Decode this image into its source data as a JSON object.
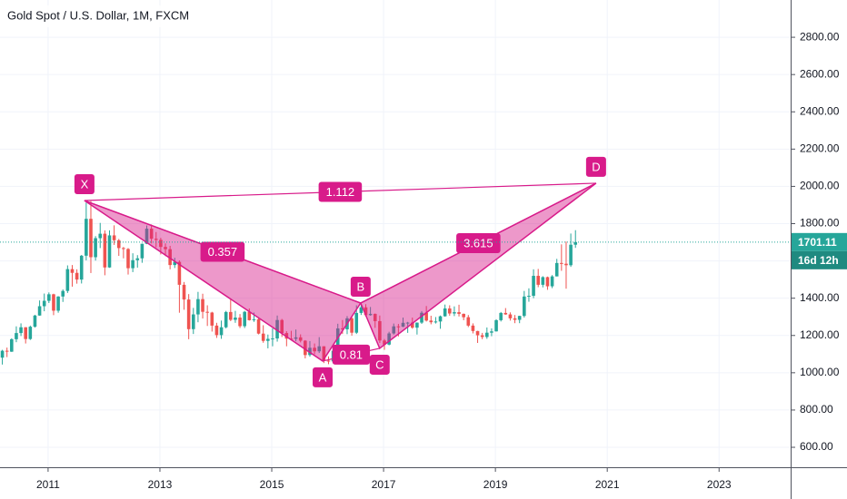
{
  "chart_data": {
    "type": "candlestick",
    "title": "Gold Spot / U.S. Dollar, 1M, FXCM",
    "up_color": "#26a69a",
    "down_color": "#ef5350",
    "grid": true,
    "xlim": [
      2010.14,
      2024.28
    ],
    "xticks": [
      2011,
      2013,
      2015,
      2017,
      2019,
      2021,
      2023
    ],
    "ylim": [
      493,
      3000
    ],
    "yticks": [
      {
        "value": 600,
        "label": "600.00"
      },
      {
        "value": 800,
        "label": "800.00"
      },
      {
        "value": 1000,
        "label": "1000.00"
      },
      {
        "value": 1200,
        "label": "1200.00"
      },
      {
        "value": 1400,
        "label": "1400.00"
      },
      {
        "value": 1600,
        "label": "1600.00"
      },
      {
        "value": 1800,
        "label": "1800.00"
      },
      {
        "value": 2000,
        "label": "2000.00"
      },
      {
        "value": 2200,
        "label": "2200.00"
      },
      {
        "value": 2400,
        "label": "2400.00"
      },
      {
        "value": 2600,
        "label": "2600.00"
      },
      {
        "value": 2800,
        "label": "2800.00"
      }
    ],
    "ohlc": [
      [
        1081,
        1123,
        1044,
        1118
      ],
      [
        1118,
        1135,
        1084,
        1113
      ],
      [
        1113,
        1185,
        1112,
        1180
      ],
      [
        1180,
        1249,
        1164,
        1213
      ],
      [
        1213,
        1265,
        1197,
        1244
      ],
      [
        1244,
        1245,
        1157,
        1181
      ],
      [
        1181,
        1253,
        1176,
        1247
      ],
      [
        1247,
        1311,
        1242,
        1307
      ],
      [
        1307,
        1388,
        1306,
        1357
      ],
      [
        1357,
        1425,
        1330,
        1386
      ],
      [
        1386,
        1431,
        1374,
        1421
      ],
      [
        1421,
        1424,
        1309,
        1333
      ],
      [
        1333,
        1411,
        1322,
        1409
      ],
      [
        1409,
        1447,
        1380,
        1439
      ],
      [
        1439,
        1576,
        1428,
        1556
      ],
      [
        1556,
        1578,
        1462,
        1536
      ],
      [
        1536,
        1555,
        1478,
        1500
      ],
      [
        1500,
        1632,
        1479,
        1628
      ],
      [
        1628,
        1913,
        1603,
        1826
      ],
      [
        1826,
        1921,
        1535,
        1620
      ],
      [
        1620,
        1733,
        1602,
        1722
      ],
      [
        1722,
        1804,
        1669,
        1746
      ],
      [
        1746,
        1764,
        1523,
        1565
      ],
      [
        1565,
        1764,
        1563,
        1737
      ],
      [
        1737,
        1791,
        1686,
        1711
      ],
      [
        1711,
        1718,
        1627,
        1669
      ],
      [
        1669,
        1675,
        1614,
        1664
      ],
      [
        1664,
        1669,
        1527,
        1561
      ],
      [
        1561,
        1641,
        1540,
        1604
      ],
      [
        1604,
        1631,
        1564,
        1614
      ],
      [
        1614,
        1693,
        1590,
        1692
      ],
      [
        1692,
        1790,
        1690,
        1773
      ],
      [
        1773,
        1796,
        1694,
        1719
      ],
      [
        1719,
        1755,
        1673,
        1713
      ],
      [
        1713,
        1724,
        1635,
        1675
      ],
      [
        1675,
        1694,
        1626,
        1663
      ],
      [
        1663,
        1681,
        1555,
        1578
      ],
      [
        1578,
        1617,
        1562,
        1595
      ],
      [
        1595,
        1603,
        1322,
        1472
      ],
      [
        1472,
        1487,
        1338,
        1393
      ],
      [
        1393,
        1422,
        1180,
        1234
      ],
      [
        1234,
        1348,
        1208,
        1313
      ],
      [
        1313,
        1434,
        1271,
        1395
      ],
      [
        1395,
        1424,
        1291,
        1327
      ],
      [
        1327,
        1362,
        1251,
        1323
      ],
      [
        1323,
        1327,
        1221,
        1253
      ],
      [
        1253,
        1268,
        1187,
        1202
      ],
      [
        1202,
        1280,
        1182,
        1244
      ],
      [
        1244,
        1332,
        1238,
        1326
      ],
      [
        1326,
        1392,
        1277,
        1284
      ],
      [
        1284,
        1332,
        1268,
        1296
      ],
      [
        1296,
        1315,
        1240,
        1250
      ],
      [
        1250,
        1332,
        1240,
        1327
      ],
      [
        1327,
        1345,
        1280,
        1282
      ],
      [
        1282,
        1323,
        1273,
        1287
      ],
      [
        1287,
        1293,
        1206,
        1210
      ],
      [
        1210,
        1255,
        1161,
        1171
      ],
      [
        1171,
        1205,
        1131,
        1182
      ],
      [
        1182,
        1238,
        1142,
        1184
      ],
      [
        1184,
        1307,
        1167,
        1283
      ],
      [
        1283,
        1289,
        1192,
        1213
      ],
      [
        1213,
        1223,
        1142,
        1183
      ],
      [
        1183,
        1225,
        1175,
        1182
      ],
      [
        1182,
        1232,
        1169,
        1190
      ],
      [
        1190,
        1206,
        1163,
        1172
      ],
      [
        1172,
        1175,
        1077,
        1095
      ],
      [
        1095,
        1170,
        1086,
        1134
      ],
      [
        1134,
        1157,
        1099,
        1115
      ],
      [
        1115,
        1191,
        1106,
        1142
      ],
      [
        1142,
        1142,
        1052,
        1065
      ],
      [
        1065,
        1088,
        1046,
        1061
      ],
      [
        1061,
        1127,
        1056,
        1118
      ],
      [
        1118,
        1263,
        1107,
        1238
      ],
      [
        1238,
        1283,
        1208,
        1233
      ],
      [
        1233,
        1304,
        1207,
        1292
      ],
      [
        1292,
        1304,
        1199,
        1215
      ],
      [
        1215,
        1362,
        1208,
        1321
      ],
      [
        1321,
        1375,
        1310,
        1351
      ],
      [
        1351,
        1368,
        1301,
        1309
      ],
      [
        1309,
        1353,
        1306,
        1316
      ],
      [
        1316,
        1318,
        1241,
        1277
      ],
      [
        1277,
        1307,
        1160,
        1173
      ],
      [
        1173,
        1181,
        1123,
        1151
      ],
      [
        1151,
        1220,
        1147,
        1211
      ],
      [
        1211,
        1264,
        1205,
        1249
      ],
      [
        1249,
        1262,
        1195,
        1247
      ],
      [
        1247,
        1296,
        1245,
        1268
      ],
      [
        1268,
        1273,
        1214,
        1269
      ],
      [
        1269,
        1296,
        1236,
        1242
      ],
      [
        1242,
        1270,
        1205,
        1269
      ],
      [
        1269,
        1331,
        1262,
        1322
      ],
      [
        1322,
        1358,
        1275,
        1280
      ],
      [
        1280,
        1306,
        1260,
        1271
      ],
      [
        1271,
        1299,
        1264,
        1275
      ],
      [
        1275,
        1307,
        1236,
        1303
      ],
      [
        1303,
        1366,
        1301,
        1345
      ],
      [
        1345,
        1362,
        1306,
        1318
      ],
      [
        1318,
        1356,
        1304,
        1325
      ],
      [
        1325,
        1365,
        1302,
        1316
      ],
      [
        1316,
        1318,
        1282,
        1298
      ],
      [
        1298,
        1310,
        1245,
        1253
      ],
      [
        1253,
        1265,
        1211,
        1224
      ],
      [
        1224,
        1225,
        1160,
        1201
      ],
      [
        1201,
        1214,
        1180,
        1192
      ],
      [
        1192,
        1243,
        1182,
        1215
      ],
      [
        1215,
        1238,
        1196,
        1222
      ],
      [
        1222,
        1287,
        1221,
        1282
      ],
      [
        1282,
        1326,
        1275,
        1321
      ],
      [
        1321,
        1347,
        1311,
        1313
      ],
      [
        1313,
        1324,
        1280,
        1292
      ],
      [
        1292,
        1310,
        1266,
        1284
      ],
      [
        1284,
        1306,
        1266,
        1305
      ],
      [
        1305,
        1439,
        1296,
        1409
      ],
      [
        1409,
        1453,
        1381,
        1413
      ],
      [
        1413,
        1555,
        1400,
        1520
      ],
      [
        1520,
        1557,
        1459,
        1472
      ],
      [
        1472,
        1518,
        1458,
        1513
      ],
      [
        1513,
        1516,
        1445,
        1464
      ],
      [
        1464,
        1524,
        1454,
        1517
      ],
      [
        1517,
        1611,
        1517,
        1589
      ],
      [
        1589,
        1689,
        1547,
        1585
      ],
      [
        1585,
        1704,
        1451,
        1577
      ],
      [
        1577,
        1747,
        1568,
        1687
      ],
      [
        1687,
        1765,
        1670,
        1701.11
      ]
    ],
    "last_price": 1701.11,
    "countdown": "16d 12h",
    "pattern": {
      "color": "#d81b8a",
      "points": [
        {
          "label": "X",
          "x": 2011.65,
          "y": 1924
        },
        {
          "label": "A",
          "x": 2015.91,
          "y": 1063
        },
        {
          "label": "B",
          "x": 2016.59,
          "y": 1374
        },
        {
          "label": "C",
          "x": 2016.93,
          "y": 1131
        },
        {
          "label": "D",
          "x": 2020.8,
          "y": 2017
        }
      ],
      "ratios": [
        0.357,
        0.81,
        3.615,
        1.112
      ]
    }
  }
}
